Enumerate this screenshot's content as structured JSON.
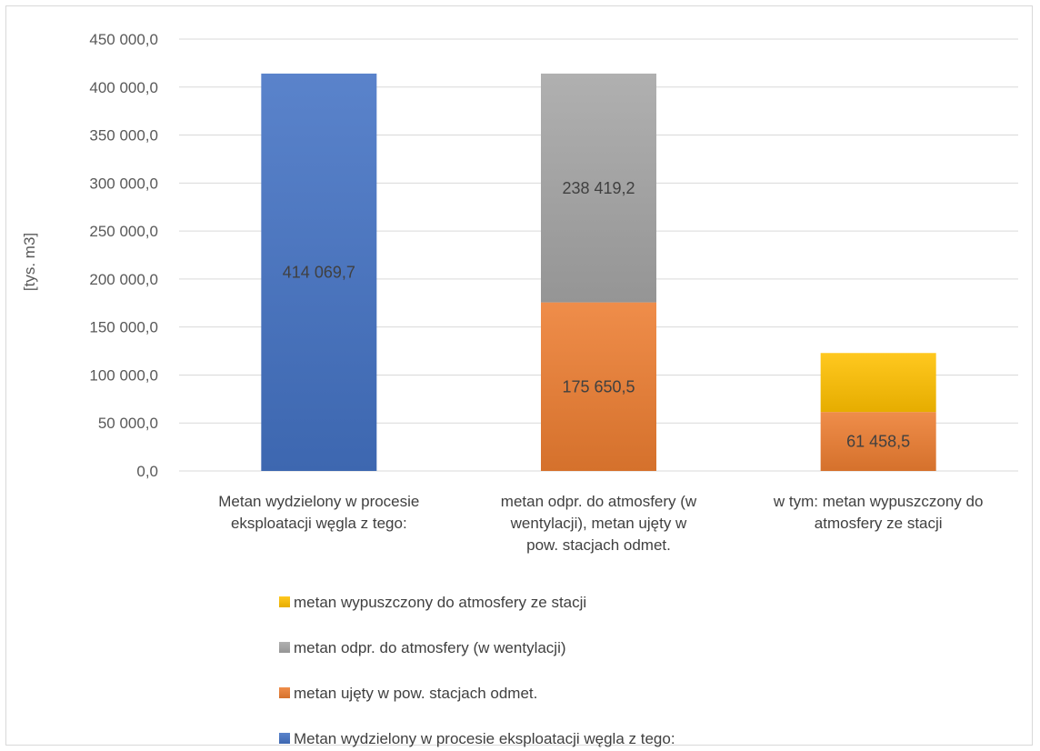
{
  "chart_data": {
    "type": "bar",
    "stacked": true,
    "title": "",
    "xlabel": "",
    "ylabel": "[tys. m3]",
    "ylim": [
      0,
      450000
    ],
    "ytick_values": [
      0,
      50000,
      100000,
      150000,
      200000,
      250000,
      300000,
      350000,
      400000,
      450000
    ],
    "ytick_labels": [
      "0,0",
      "50 000,0",
      "100 000,0",
      "150 000,0",
      "200 000,0",
      "250 000,0",
      "300 000,0",
      "350 000,0",
      "400 000,0",
      "450 000,0"
    ],
    "grid": true,
    "legend_position": "bottom",
    "categories": [
      [
        "Metan wydzielony w procesie",
        "eksploatacji węgla z tego:"
      ],
      [
        "metan odpr. do atmosfery (w",
        "wentylacji), metan ujęty w",
        "pow. stacjach odmet."
      ],
      [
        "w tym: metan wypuszczony do",
        "atmosfery ze stacji"
      ]
    ],
    "series": [
      {
        "name": "Metan wydzielony w procesie eksploatacji węgla z tego:",
        "color": "#4472c4",
        "values": [
          414069.7,
          0,
          0
        ],
        "labels": [
          "414 069,7",
          "",
          ""
        ]
      },
      {
        "name": "metan ujęty w pow. stacjach odmet.",
        "color": "#ed7d31",
        "values": [
          0,
          175650.5,
          61458.5
        ],
        "labels": [
          "",
          "175 650,5",
          "61 458,5"
        ]
      },
      {
        "name": "metan odpr. do atmosfery (w wentylacji)",
        "color": "#a5a5a5",
        "values": [
          0,
          238419.2,
          0
        ],
        "labels": [
          "",
          "238 419,2",
          ""
        ]
      },
      {
        "name": "metan wypuszczony do atmosfery ze stacji",
        "color": "#ffc000",
        "values": [
          0,
          0,
          61458.5
        ],
        "labels": [
          "",
          "",
          ""
        ]
      }
    ],
    "legend_order": [
      3,
      2,
      1,
      0
    ]
  }
}
